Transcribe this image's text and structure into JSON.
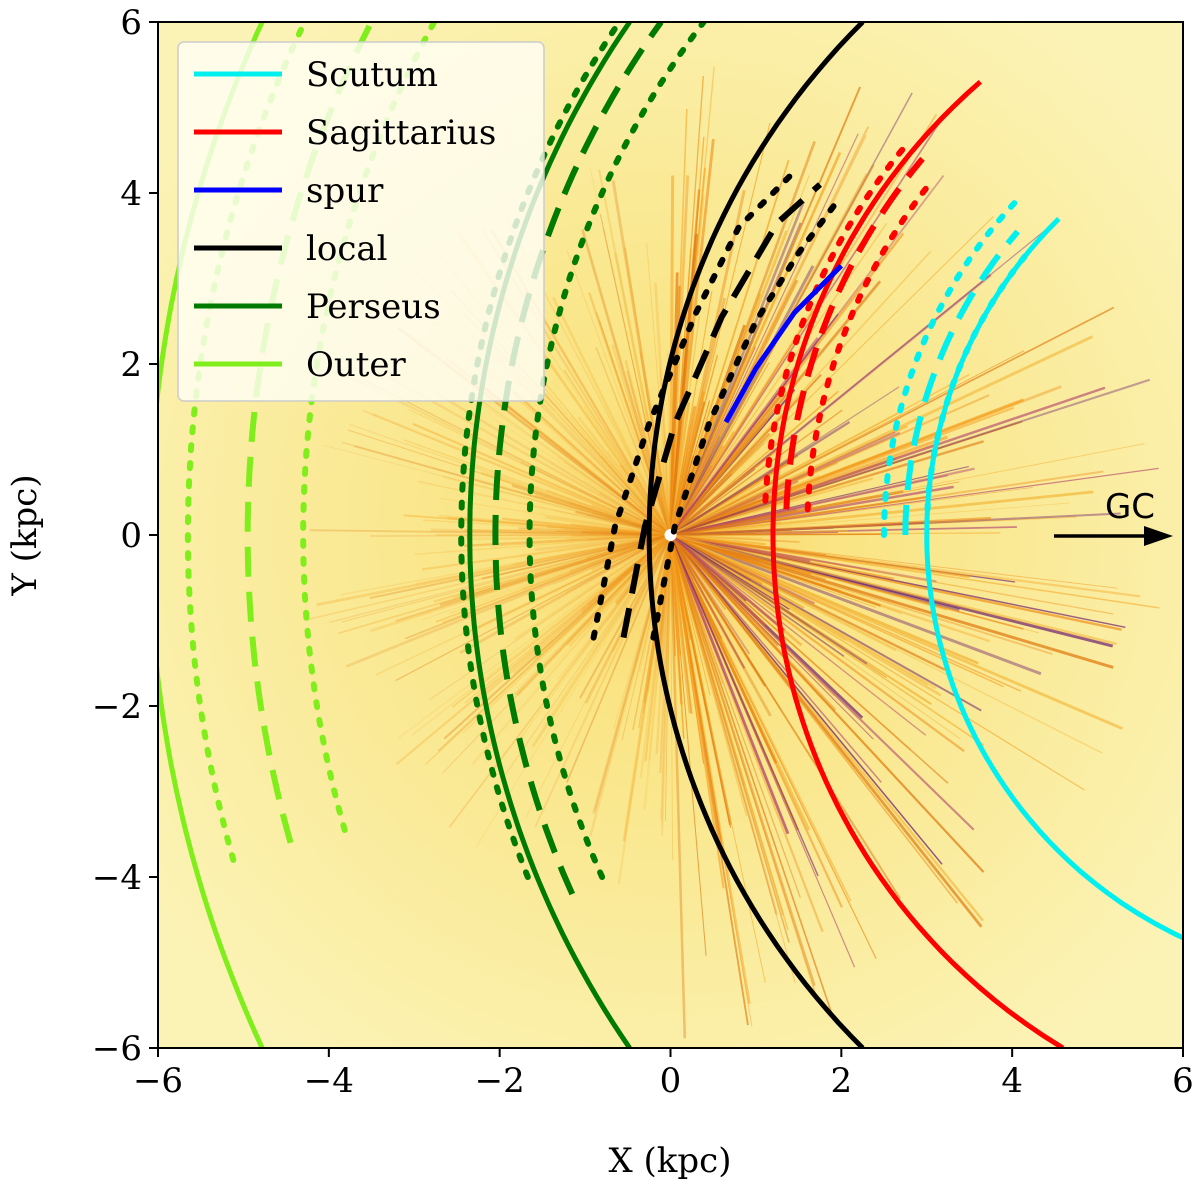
{
  "chart_data": {
    "type": "line",
    "title": "",
    "xlabel": "X (kpc)",
    "ylabel": "Y (kpc)",
    "xlim": [
      -6,
      6
    ],
    "ylim": [
      -6,
      6
    ],
    "xticks": [
      -6,
      -4,
      -2,
      0,
      2,
      4,
      6
    ],
    "yticks": [
      -6,
      -4,
      -2,
      0,
      2,
      4,
      6
    ],
    "xtick_labels": [
      "−6",
      "−4",
      "−2",
      "0",
      "2",
      "4",
      "6"
    ],
    "ytick_labels": [
      "−6",
      "−4",
      "−2",
      "0",
      "2",
      "4",
      "6"
    ],
    "grid": false,
    "legend_placement": "top-left",
    "background": "extinction density map (yellow to orange to purple), radial rays around the Sun at (0,0)",
    "annotation": {
      "text": "GC",
      "arrow_from": [
        4.5,
        0
      ],
      "arrow_to": [
        6.0,
        0
      ]
    },
    "arm_center": [
      8.2,
      0
    ],
    "series": [
      {
        "name": "Scutum",
        "color": "#00f0f0",
        "solid": {
          "radius": 5.2,
          "y_range": [
            -6,
            3.7
          ]
        },
        "dashed": {
          "radius": 5.45,
          "y_range": [
            0.0,
            3.55
          ]
        },
        "dotted": [
          {
            "radius": 5.7,
            "y_range": [
              0.0,
              3.9
            ]
          },
          {
            "radius": 5.2,
            "y_range": [
              0.3,
              3.3
            ]
          }
        ]
      },
      {
        "name": "Sagittarius",
        "color": "#ff0000",
        "solid": {
          "radius": 7.0,
          "y_range": [
            -6,
            5.3
          ]
        },
        "dashed": {
          "radius": 6.85,
          "y_range": [
            0.3,
            4.4
          ]
        },
        "dotted": [
          {
            "radius": 7.1,
            "y_range": [
              0.4,
              4.6
            ]
          },
          {
            "radius": 6.6,
            "y_range": [
              0.3,
              4.1
            ]
          }
        ]
      },
      {
        "name": "spur",
        "color": "#0000ff",
        "solid": {
          "points": [
            [
              0.65,
              1.32
            ],
            [
              1.0,
              1.95
            ],
            [
              1.45,
              2.6
            ],
            [
              2.0,
              3.15
            ]
          ]
        }
      },
      {
        "name": "local",
        "color": "#000000",
        "solid": {
          "radius": 8.45,
          "y_range": [
            -6,
            6
          ]
        },
        "dashed": {
          "points": [
            [
              -0.55,
              -1.2
            ],
            [
              -0.3,
              0.1
            ],
            [
              0.05,
              1.3
            ],
            [
              0.6,
              2.55
            ],
            [
              1.25,
              3.65
            ],
            [
              1.75,
              4.1
            ]
          ]
        },
        "dotted": [
          {
            "points": [
              [
                -0.9,
                -1.2
              ],
              [
                -0.65,
                0.1
              ],
              [
                -0.25,
                1.3
              ],
              [
                0.3,
                2.6
              ],
              [
                0.8,
                3.6
              ],
              [
                1.45,
                4.25
              ]
            ]
          },
          {
            "points": [
              [
                -0.2,
                -1.2
              ],
              [
                0.05,
                0.1
              ],
              [
                0.45,
                1.3
              ],
              [
                1.0,
                2.5
              ],
              [
                1.5,
                3.3
              ],
              [
                1.95,
                3.9
              ]
            ]
          }
        ]
      },
      {
        "name": "Perseus",
        "color": "#007a00",
        "solid": {
          "radius": 10.55,
          "y_range": [
            -6,
            6
          ]
        },
        "dashed": {
          "radius": 10.25,
          "y_range": [
            -4.2,
            6
          ]
        },
        "dotted": [
          {
            "radius": 10.65,
            "y_range": [
              -4.0,
              6
            ]
          },
          {
            "radius": 9.85,
            "y_range": [
              -4.0,
              6
            ]
          }
        ]
      },
      {
        "name": "Outer",
        "color": "#80ee1a",
        "solid": {
          "radius": 14.3,
          "y_range": [
            -6,
            6
          ]
        },
        "dashed": {
          "radius": 13.15,
          "y_range": [
            -3.6,
            6
          ]
        },
        "dotted": [
          {
            "radius": 13.85,
            "y_range": [
              -3.8,
              6
            ]
          },
          {
            "radius": 12.5,
            "y_range": [
              -3.45,
              6
            ]
          }
        ]
      }
    ]
  }
}
